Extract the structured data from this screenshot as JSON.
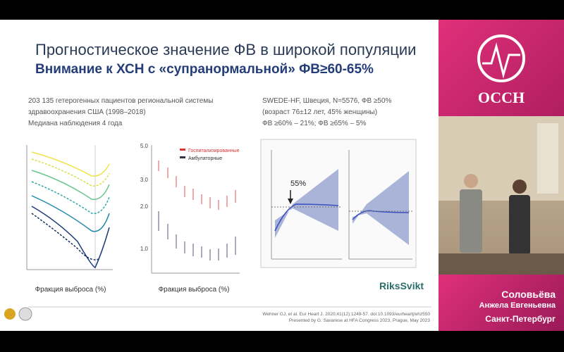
{
  "slide": {
    "title": "Прогностическое значение ФВ в широкой популяции",
    "subtitle": "Внимание к ХСН с «супранормальной» ФВ≥60-65%",
    "left_text": [
      "203 135 гетерогенных пациентов региональной системы",
      "здравоохранения США (1998–2018)",
      "Медиана наблюдения 4 года"
    ],
    "right_text": [
      "SWEDE-HF, Швеция, N=5576, ФВ ≥50%",
      "(возраст 76±12 лет, 45% женщины)",
      "ФВ ≥60% – 21%; ФВ ≥65% – 5%"
    ],
    "chart1": {
      "x_label": "Фракция выброса (%)"
    },
    "chart2": {
      "x_label": "Фракция выброса (%)",
      "legend": [
        "Госпитализированные",
        "Амбулаторные"
      ],
      "yticks": [
        "5.0",
        "3.0",
        "2.0",
        "1.0"
      ]
    },
    "chart3": {
      "annotation": "55%"
    },
    "logo_text": "RiksSvikt",
    "citation": [
      "Wehner GJ, et al. Eur Heart J. 2020;41(12):1249-57. doi:10.1093/eurheartj/ehz550",
      "Presented by G. Savarese at HFA Congress 2023, Prague, May 2023"
    ]
  },
  "sidebar": {
    "logo": "ОССН",
    "speaker": {
      "surname": "Соловьёва",
      "name": "Анжела Евгеньевна",
      "city": "Санкт-Петербург"
    }
  }
}
